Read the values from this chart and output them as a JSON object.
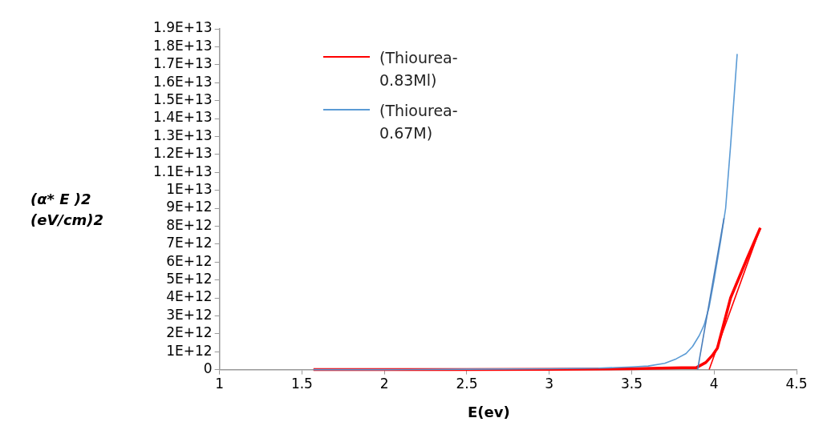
{
  "chart_data": {
    "type": "line",
    "xlabel": "E(ev)",
    "ylabel": "(α* E )2\n(eV/cm)2",
    "legend": "top left",
    "grid": false,
    "marker": "none",
    "line_style": "solid",
    "xlim": [
      1,
      4.5
    ],
    "xticks": [
      1,
      1.5,
      2,
      2.5,
      3,
      3.5,
      4,
      4.5
    ],
    "ylim": [
      0,
      19000000000000.0
    ],
    "yticks": [
      0,
      {
        "value": 1000000000000.0,
        "label": "1E+12"
      },
      {
        "value": 2000000000000.0,
        "label": "2E+12"
      },
      {
        "value": 3000000000000.0,
        "label": "3E+12"
      },
      {
        "value": 4000000000000.0,
        "label": "4E+12"
      },
      {
        "value": 5000000000000.0,
        "label": "5E+12"
      },
      {
        "value": 6000000000000.0,
        "label": "6E+12"
      },
      {
        "value": 7000000000000.0,
        "label": "7E+12"
      },
      {
        "value": 8000000000000.0,
        "label": "8E+12"
      },
      {
        "value": 9000000000000.0,
        "label": "9E+12"
      },
      {
        "value": 10000000000000.0,
        "label": "1E+13"
      },
      {
        "value": 11000000000000.0,
        "label": "1.1E+13"
      },
      {
        "value": 12000000000000.0,
        "label": "1.2E+13"
      },
      {
        "value": 13000000000000.0,
        "label": "1.3E+13"
      },
      {
        "value": 14000000000000.0,
        "label": "1.4E+13"
      },
      {
        "value": 15000000000000.0,
        "label": "1.5E+13"
      },
      {
        "value": 16000000000000.0,
        "label": "1.6E+13"
      },
      {
        "value": 17000000000000.0,
        "label": "1.7E+13"
      },
      {
        "value": 18000000000000.0,
        "label": "1.8E+13"
      },
      {
        "value": 19000000000000.0,
        "label": "1.9E+13"
      }
    ],
    "series": [
      {
        "name": "(Thiourea-0.83Ml)",
        "color": "#ff0000",
        "x": [
          1.57,
          2,
          2.5,
          3,
          3.5,
          3.8,
          3.89,
          3.95,
          3.99,
          4.02,
          4.1,
          4.2,
          4.28
        ],
        "values": [
          0,
          0,
          0,
          20000000000.0,
          50000000000.0,
          100000000000.0,
          100000000000.0,
          400000000000.0,
          800000000000.0,
          1200000000000.0,
          4000000000000.0,
          6200000000000.0,
          7900000000000.0
        ]
      },
      {
        "name": "(Thiourea-0.67M)",
        "color": "#5b9bd5",
        "x": [
          1.57,
          2,
          2.5,
          3,
          3.3,
          3.5,
          3.6,
          3.7,
          3.77,
          3.83,
          3.87,
          3.91,
          3.94,
          3.97,
          4,
          4.04,
          4.07,
          4.1,
          4.14
        ],
        "values": [
          0,
          0,
          20000000000.0,
          50000000000.0,
          80000000000.0,
          150000000000.0,
          200000000000.0,
          350000000000.0,
          600000000000.0,
          900000000000.0,
          1300000000000.0,
          1900000000000.0,
          2500000000000.0,
          3500000000000.0,
          5000000000000.0,
          7200000000000.0,
          9000000000000.0,
          12500000000000.0,
          17600000000000.0
        ]
      },
      {
        "color": "#ff0000",
        "x": [
          3.97,
          4.28
        ],
        "values": [
          0,
          7900000000000.0
        ]
      },
      {
        "color": "#4a7ebb",
        "x": [
          3.9,
          4.06
        ],
        "values": [
          0,
          8450000000000.0
        ]
      }
    ]
  }
}
